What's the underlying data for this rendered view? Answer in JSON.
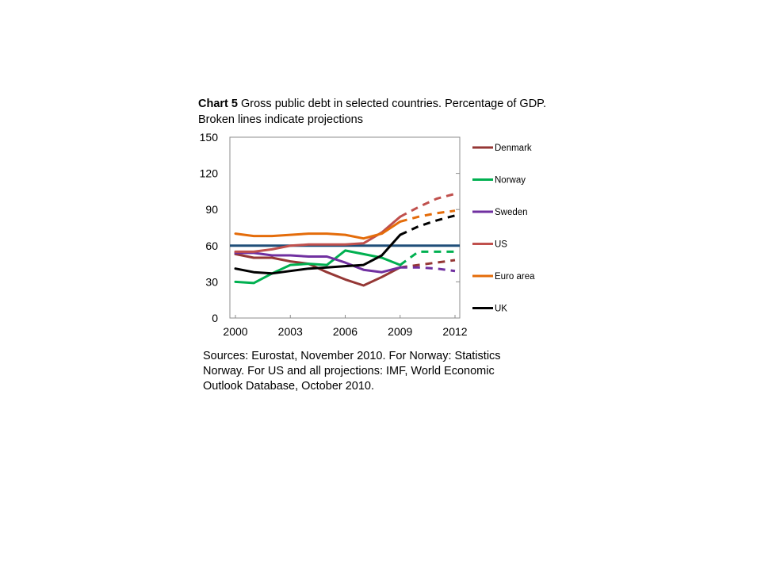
{
  "title": {
    "lead": "Chart 5",
    "text": " Gross public debt in selected countries. Percentage of GDP. Broken lines indicate projections"
  },
  "source": "Sources: Eurostat, November 2010. For Norway: Statistics Norway. For US and all projections: IMF, World Economic Outlook Database, October 2010.",
  "chart_data": {
    "type": "line",
    "xlim": [
      2000,
      2012
    ],
    "ylim": [
      0,
      150
    ],
    "xticks": [
      "2000",
      "2003",
      "2006",
      "2009",
      "2012"
    ],
    "xtick_values": [
      2000,
      2003,
      2006,
      2009,
      2012
    ],
    "yticks": [
      "0",
      "30",
      "60",
      "90",
      "120",
      "150"
    ],
    "ytick_values": [
      0,
      30,
      60,
      90,
      120,
      150
    ],
    "grid": false,
    "legend_position": "right",
    "reference_line": {
      "y": 60,
      "color": "#1f4e79"
    },
    "series": [
      {
        "name": "Denmark",
        "color": "#953735",
        "actual": {
          "x": [
            2000,
            2001,
            2002,
            2003,
            2004,
            2005,
            2006,
            2007,
            2008,
            2009
          ],
          "y": [
            53,
            50,
            50,
            47,
            45,
            38,
            32,
            27,
            34,
            42
          ]
        },
        "projection": {
          "x": [
            2009,
            2010,
            2011,
            2012
          ],
          "y": [
            42,
            44,
            46,
            48
          ]
        }
      },
      {
        "name": "Norway",
        "color": "#00b050",
        "actual": {
          "x": [
            2000,
            2001,
            2002,
            2003,
            2004,
            2005,
            2006,
            2007,
            2008,
            2009
          ],
          "y": [
            30,
            29,
            37,
            44,
            45,
            44,
            56,
            53,
            50,
            44
          ]
        },
        "projection": {
          "x": [
            2009,
            2010,
            2011,
            2012
          ],
          "y": [
            44,
            55,
            55,
            55
          ]
        }
      },
      {
        "name": "Sweden",
        "color": "#7030a0",
        "actual": {
          "x": [
            2000,
            2001,
            2002,
            2003,
            2004,
            2005,
            2006,
            2007,
            2008,
            2009
          ],
          "y": [
            54,
            54,
            52,
            52,
            51,
            51,
            46,
            40,
            38,
            42
          ]
        },
        "projection": {
          "x": [
            2009,
            2010,
            2011,
            2012
          ],
          "y": [
            42,
            42,
            41,
            39
          ]
        }
      },
      {
        "name": "US",
        "color": "#c0504d",
        "actual": {
          "x": [
            2000,
            2001,
            2002,
            2003,
            2004,
            2005,
            2006,
            2007,
            2008,
            2009
          ],
          "y": [
            55,
            55,
            57,
            60,
            61,
            61,
            61,
            62,
            71,
            84
          ]
        },
        "projection": {
          "x": [
            2009,
            2010,
            2011,
            2012
          ],
          "y": [
            84,
            92,
            99,
            103
          ]
        }
      },
      {
        "name": "Euro area",
        "color": "#e46c0a",
        "actual": {
          "x": [
            2000,
            2001,
            2002,
            2003,
            2004,
            2005,
            2006,
            2007,
            2008,
            2009
          ],
          "y": [
            70,
            68,
            68,
            69,
            70,
            70,
            69,
            66,
            70,
            80
          ]
        },
        "projection": {
          "x": [
            2009,
            2010,
            2011,
            2012
          ],
          "y": [
            80,
            84,
            87,
            89
          ]
        }
      },
      {
        "name": "UK",
        "color": "#000000",
        "actual": {
          "x": [
            2000,
            2001,
            2002,
            2003,
            2004,
            2005,
            2006,
            2007,
            2008,
            2009
          ],
          "y": [
            41,
            38,
            37,
            39,
            41,
            42,
            43,
            44,
            52,
            69
          ]
        },
        "projection": {
          "x": [
            2009,
            2010,
            2011,
            2012
          ],
          "y": [
            69,
            76,
            81,
            85
          ]
        }
      }
    ]
  }
}
